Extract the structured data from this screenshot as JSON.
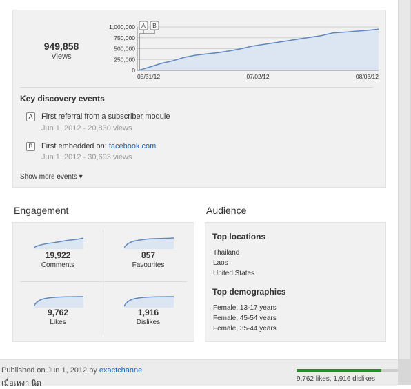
{
  "views": {
    "total": "949,858",
    "label": "Views",
    "chart": {
      "y_ticks": [
        "1,000,000",
        "750,000",
        "500,000",
        "250,000",
        "0"
      ],
      "y_values": [
        1000000,
        750000,
        500000,
        250000,
        0
      ],
      "x_ticks": [
        "05/31/12",
        "07/02/12",
        "08/03/12"
      ],
      "markers": [
        "A",
        "B"
      ],
      "series_cumulative_views": [
        0,
        80000,
        160000,
        220000,
        300000,
        350000,
        380000,
        410000,
        450000,
        500000,
        560000,
        600000,
        640000,
        680000,
        720000,
        760000,
        800000,
        860000,
        880000,
        900000,
        920000,
        949858
      ],
      "ylim": [
        0,
        1000000
      ]
    }
  },
  "discovery": {
    "title": "Key discovery events",
    "events": [
      {
        "marker": "A",
        "title": "First referral from a subscriber module",
        "link": "",
        "sub": "Jun 1, 2012 - 20,830 views"
      },
      {
        "marker": "B",
        "title": "First embedded on: ",
        "link": "facebook.com",
        "sub": "Jun 1, 2012 - 30,693 views"
      }
    ],
    "show_more": "Show more events ▾"
  },
  "engagement": {
    "heading": "Engagement",
    "metrics": [
      {
        "value": "19,922",
        "label": "Comments"
      },
      {
        "value": "857",
        "label": "Favourites"
      },
      {
        "value": "9,762",
        "label": "Likes"
      },
      {
        "value": "1,916",
        "label": "Dislikes"
      }
    ]
  },
  "audience": {
    "heading": "Audience",
    "locations_title": "Top locations",
    "locations": [
      "Thailand",
      "Laos",
      "United States"
    ],
    "demographics_title": "Top demographics",
    "demographics": [
      "Female, 13-17 years",
      "Female, 45-54 years",
      "Female, 35-44 years"
    ]
  },
  "footer": {
    "published_prefix": "Published on Jun 1, 2012 by ",
    "channel": "exactchannel",
    "line2": "เมื่อเหงา นิด",
    "likes_text": "9,762 likes, 1,916 dislikes",
    "like_ratio": 0.836
  },
  "colors": {
    "accent_link": "#1c62b9",
    "chart_line": "#5e87bf",
    "chart_fill": "#dbe6f2",
    "like_bar": "#2a8b2a"
  }
}
